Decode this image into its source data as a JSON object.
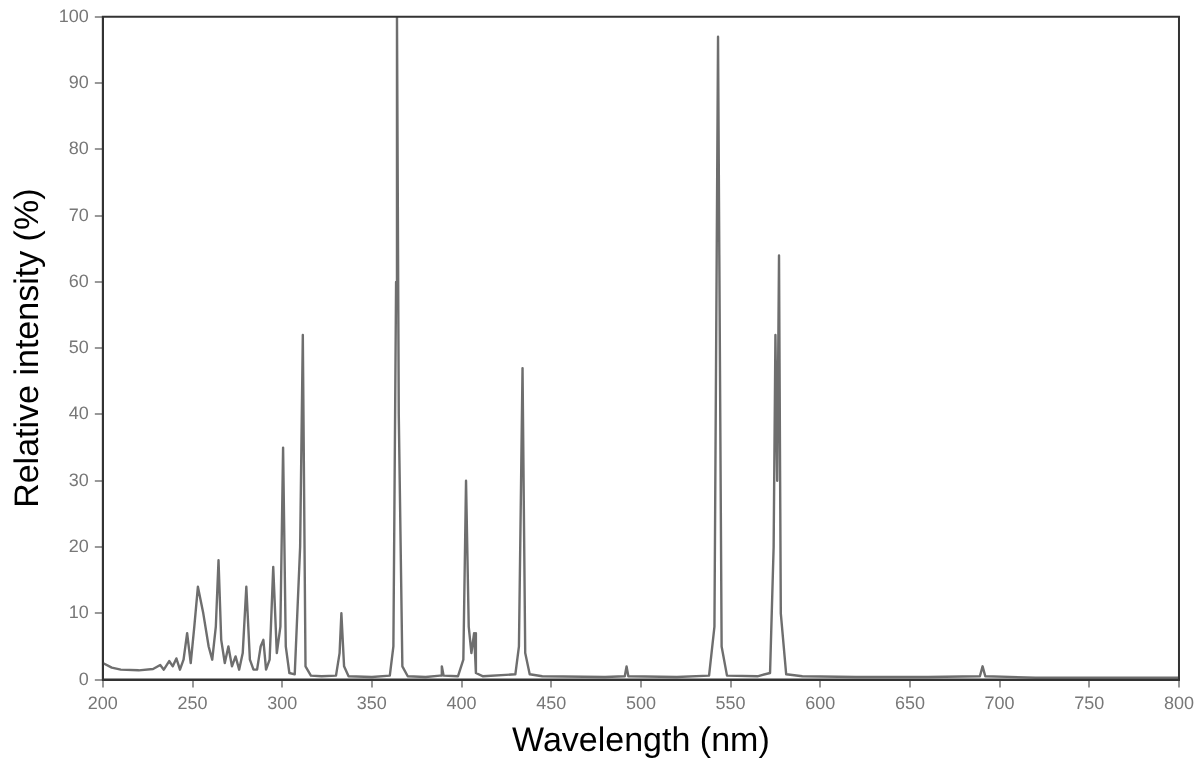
{
  "chart_data": {
    "type": "line",
    "xlabel": "Wavelength (nm)",
    "ylabel": "Relative intensity (%)",
    "xlim": [
      200,
      800
    ],
    "xticks": [
      200,
      250,
      300,
      350,
      400,
      450,
      500,
      550,
      600,
      650,
      700,
      750,
      800
    ],
    "ylim": [
      0,
      100
    ],
    "yticks": [
      0,
      10,
      20,
      30,
      40,
      50,
      60,
      70,
      80,
      90,
      100
    ],
    "grid": false,
    "legend": false,
    "marker": "none",
    "line_style": "solid",
    "series": [
      {
        "color": "#6e6e6e",
        "x": [
          200,
          205,
          210,
          220,
          228,
          232,
          234,
          237,
          239,
          241,
          243,
          245,
          247,
          249,
          251,
          253,
          256,
          259,
          261,
          263,
          264.5,
          266,
          268,
          270,
          272,
          274,
          276,
          278,
          280,
          282,
          284,
          286,
          288,
          289.5,
          291,
          293,
          295,
          297,
          299,
          300.5,
          302,
          304,
          307,
          310,
          311.5,
          313,
          316,
          322,
          330,
          332,
          333,
          334.5,
          337,
          350,
          360,
          362,
          363.5,
          364,
          365,
          367,
          370,
          380,
          388,
          389,
          390,
          398,
          401,
          402.5,
          404,
          405.5,
          407,
          408,
          412,
          430,
          432,
          434,
          435.5,
          438,
          445,
          480,
          491,
          492,
          493,
          520,
          538,
          541,
          543,
          545,
          548,
          565,
          572,
          574,
          575,
          576,
          577,
          578,
          581,
          590,
          620,
          660,
          689,
          690.5,
          692,
          720,
          800
        ],
        "values": [
          2.5,
          1.8,
          1.5,
          1.4,
          1.6,
          2.2,
          1.5,
          2.8,
          2,
          3.2,
          1.5,
          3,
          7,
          2.5,
          8,
          14,
          10,
          5,
          3,
          8,
          18,
          6,
          2.5,
          5,
          2,
          3.5,
          1.5,
          4,
          14,
          3,
          1.5,
          1.5,
          5,
          6,
          1.5,
          3,
          17,
          4,
          8,
          35,
          5,
          1,
          0.8,
          20,
          52,
          2,
          0.6,
          0.5,
          0.6,
          4,
          10,
          2,
          0.5,
          0.4,
          0.6,
          5,
          60,
          100,
          40,
          2,
          0.5,
          0.4,
          0.6,
          2,
          0.6,
          0.5,
          3,
          30,
          8,
          4,
          7,
          1,
          0.5,
          0.8,
          5,
          47,
          4,
          0.8,
          0.5,
          0.4,
          0.5,
          2,
          0.5,
          0.4,
          0.6,
          8,
          97,
          5,
          0.6,
          0.5,
          1,
          20,
          52,
          30,
          64,
          10,
          0.8,
          0.5,
          0.4,
          0.4,
          0.5,
          2,
          0.5,
          0.3,
          0.3
        ]
      }
    ]
  }
}
